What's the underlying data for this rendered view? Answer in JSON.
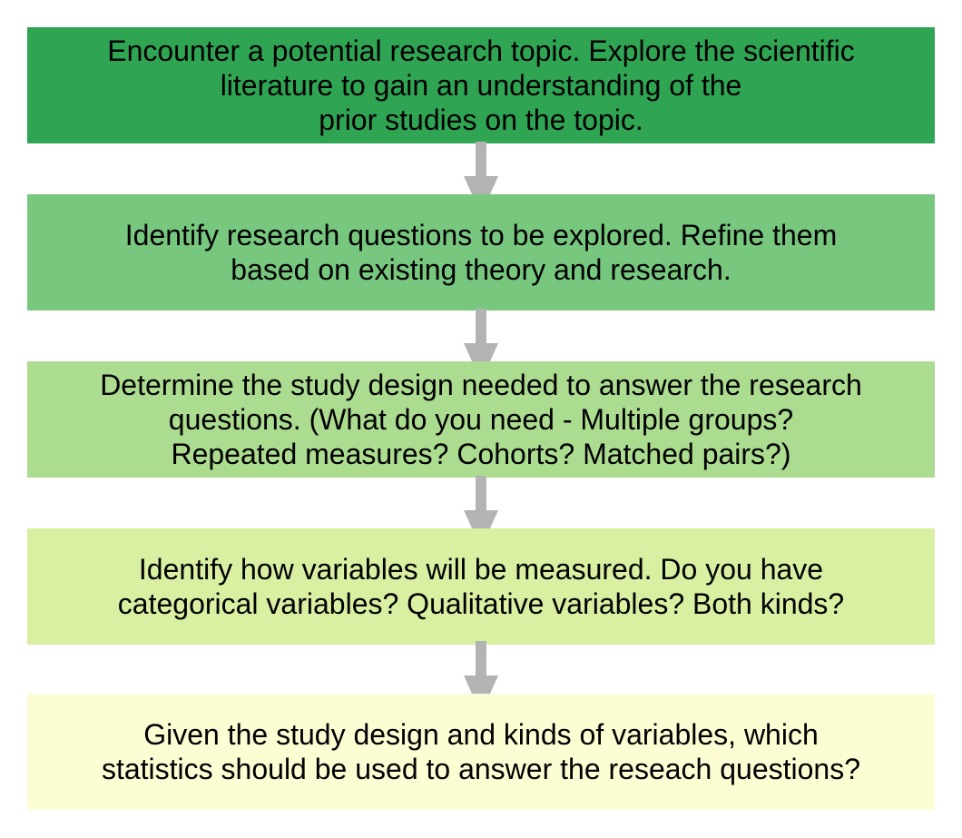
{
  "steps": [
    {
      "text": "Encounter a potential research topic.  Explore the scientific\nliterature to gain an understanding of the\nprior studies on the topic.",
      "fill": "#2fa554"
    },
    {
      "text": "Identify research questions to be explored.  Refine them\nbased on existing theory and research.",
      "fill": "#78c77f"
    },
    {
      "text": "Determine the study design needed to answer the research\nquestions.  (What do you need - Multiple groups?\nRepeated measures?  Cohorts?  Matched pairs?)",
      "fill": "#acdc90"
    },
    {
      "text": "Identify how variables will be measured.  Do you have\ncategorical variables?  Qualitative variables?  Both kinds?",
      "fill": "#d9efa2"
    },
    {
      "text": "Given the study design and kinds of variables, which\nstatistics should be used to answer the reseach questions?",
      "fill": "#fdfdd4"
    }
  ],
  "colors": {
    "arrow": "#b3b3b3"
  }
}
